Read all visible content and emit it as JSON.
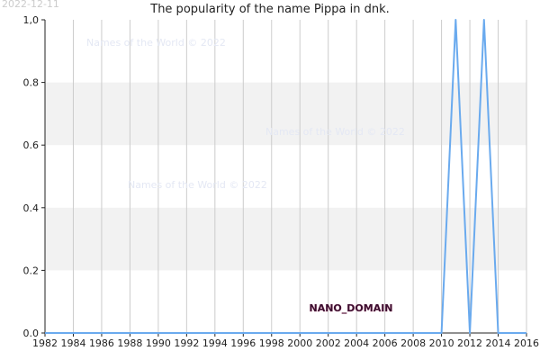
{
  "header": {
    "date_stamp": "2022-12-11",
    "title": "The popularity of the name Pippa in dnk."
  },
  "watermarks": [
    "Names of the World © 2022",
    "Names of the World © 2022",
    "Names of the World © 2022"
  ],
  "domain_tag": "NANO_DOMAIN",
  "colors": {
    "line": "#6aaaee",
    "band": "#f2f2f2",
    "grid": "#cccccc",
    "axis": "#222222"
  },
  "chart_data": {
    "type": "line",
    "title": "The popularity of the name Pippa in dnk.",
    "xlabel": "",
    "ylabel": "",
    "xlim": [
      1982,
      2016
    ],
    "ylim": [
      0,
      1.0
    ],
    "x_ticks": [
      "1982",
      "1984",
      "1986",
      "1988",
      "1990",
      "1992",
      "1994",
      "1996",
      "1998",
      "2000",
      "2002",
      "2004",
      "2006",
      "2008",
      "2010",
      "2012",
      "2014",
      "2016"
    ],
    "y_ticks": [
      "0.0",
      "0.2",
      "0.4",
      "0.6",
      "0.8",
      "1,0"
    ],
    "grid": true,
    "series": [
      {
        "x": [
          1982,
          1983,
          1984,
          1985,
          1986,
          1987,
          1988,
          1989,
          1990,
          1991,
          1992,
          1993,
          1994,
          1995,
          1996,
          1997,
          1998,
          1999,
          2000,
          2001,
          2002,
          2003,
          2004,
          2005,
          2006,
          2007,
          2008,
          2009,
          2010,
          2011,
          2012,
          2013,
          2014,
          2015,
          2016
        ],
        "values": [
          0,
          0,
          0,
          0,
          0,
          0,
          0,
          0,
          0,
          0,
          0,
          0,
          0,
          0,
          0,
          0,
          0,
          0,
          0,
          0,
          0,
          0,
          0,
          0,
          0,
          0,
          0,
          0,
          0,
          1,
          0,
          1,
          0,
          0,
          0
        ]
      }
    ]
  }
}
